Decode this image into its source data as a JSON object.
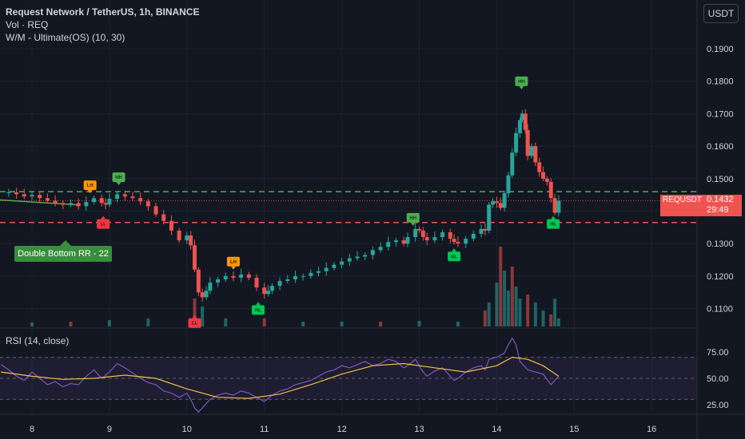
{
  "header": {
    "title": "Request Network / TetherUS, 1h, BINANCE",
    "line2": "Vol · REQ",
    "line3": "W/M - Ultimate(OS) (10, 30)"
  },
  "currency_button": "USDT",
  "rsi_label": "RSI (14, close)",
  "price_label": {
    "symbol": "REQUSDT",
    "value": "0.1432",
    "countdown": "29:49"
  },
  "callout": "Double Bottom RR - 22",
  "colors": {
    "bg": "#131722",
    "up": "#26a69a",
    "down": "#ef5350",
    "rsi_line": "#7e57c2",
    "rsi_ma": "#f0c043",
    "green_tag": "#4caf50",
    "orange_tag": "#ff9800",
    "red_tag": "#f23645",
    "teal_tag": "#00c853"
  },
  "chart_data": {
    "type": "candlestick",
    "symbol": "REQUSDT",
    "timeframe": "1h",
    "exchange": "BINANCE",
    "price_axis": {
      "ticks": [
        "0.1900",
        "0.1800",
        "0.1700",
        "0.1600",
        "0.1500",
        "0.1400",
        "0.1300",
        "0.1200",
        "0.1100"
      ],
      "range": [
        0.1085,
        0.1935
      ]
    },
    "rsi_axis": {
      "ticks": [
        "75.00",
        "50.00",
        "25.00"
      ],
      "range": [
        15,
        88
      ],
      "bands": [
        70,
        30
      ]
    },
    "x_axis": {
      "labels": [
        "8",
        "9",
        "10",
        "11",
        "12",
        "13",
        "14",
        "15",
        "16"
      ],
      "range": [
        7.6,
        16.3
      ]
    },
    "lines": {
      "resistance": 0.146,
      "support": 0.1365,
      "last": 0.1432
    },
    "trendline": [
      [
        7.55,
        0.1435
      ],
      [
        8.6,
        0.1419
      ]
    ],
    "close_series": [
      [
        7.6,
        0.1455
      ],
      [
        7.7,
        0.1458
      ],
      [
        7.8,
        0.1452
      ],
      [
        7.9,
        0.1445
      ],
      [
        8.0,
        0.145
      ],
      [
        8.1,
        0.144
      ],
      [
        8.2,
        0.1432
      ],
      [
        8.3,
        0.1425
      ],
      [
        8.4,
        0.142
      ],
      [
        8.5,
        0.1425
      ],
      [
        8.6,
        0.1415
      ],
      [
        8.7,
        0.1428
      ],
      [
        8.8,
        0.144
      ],
      [
        8.9,
        0.1425
      ],
      [
        8.95,
        0.142
      ],
      [
        9.0,
        0.1438
      ],
      [
        9.1,
        0.1452
      ],
      [
        9.2,
        0.1445
      ],
      [
        9.3,
        0.144
      ],
      [
        9.4,
        0.143
      ],
      [
        9.5,
        0.1415
      ],
      [
        9.6,
        0.139
      ],
      [
        9.7,
        0.137
      ],
      [
        9.8,
        0.134
      ],
      [
        9.9,
        0.131
      ],
      [
        10.0,
        0.1325
      ],
      [
        10.05,
        0.1295
      ],
      [
        10.1,
        0.122
      ],
      [
        10.15,
        0.115
      ],
      [
        10.2,
        0.1135
      ],
      [
        10.25,
        0.1155
      ],
      [
        10.3,
        0.118
      ],
      [
        10.4,
        0.119
      ],
      [
        10.5,
        0.12
      ],
      [
        10.6,
        0.1195
      ],
      [
        10.7,
        0.1205
      ],
      [
        10.8,
        0.1195
      ],
      [
        10.9,
        0.1165
      ],
      [
        11.0,
        0.1145
      ],
      [
        11.05,
        0.1155
      ],
      [
        11.1,
        0.117
      ],
      [
        11.2,
        0.1185
      ],
      [
        11.3,
        0.119
      ],
      [
        11.4,
        0.12
      ],
      [
        11.5,
        0.12
      ],
      [
        11.6,
        0.121
      ],
      [
        11.7,
        0.1215
      ],
      [
        11.8,
        0.1225
      ],
      [
        11.9,
        0.1235
      ],
      [
        12.0,
        0.1245
      ],
      [
        12.1,
        0.1255
      ],
      [
        12.2,
        0.126
      ],
      [
        12.3,
        0.1265
      ],
      [
        12.4,
        0.128
      ],
      [
        12.5,
        0.129
      ],
      [
        12.6,
        0.1305
      ],
      [
        12.7,
        0.131
      ],
      [
        12.8,
        0.13
      ],
      [
        12.85,
        0.132
      ],
      [
        12.95,
        0.1345
      ],
      [
        13.0,
        0.134
      ],
      [
        13.05,
        0.132
      ],
      [
        13.1,
        0.131
      ],
      [
        13.2,
        0.132
      ],
      [
        13.3,
        0.1335
      ],
      [
        13.4,
        0.1315
      ],
      [
        13.45,
        0.1305
      ],
      [
        13.5,
        0.13
      ],
      [
        13.6,
        0.1315
      ],
      [
        13.7,
        0.133
      ],
      [
        13.8,
        0.1345
      ],
      [
        13.85,
        0.134
      ],
      [
        13.9,
        0.142
      ],
      [
        13.95,
        0.143
      ],
      [
        14.0,
        0.1425
      ],
      [
        14.05,
        0.141
      ],
      [
        14.1,
        0.1455
      ],
      [
        14.15,
        0.151
      ],
      [
        14.2,
        0.158
      ],
      [
        14.25,
        0.164
      ],
      [
        14.3,
        0.168
      ],
      [
        14.33,
        0.17
      ],
      [
        14.37,
        0.165
      ],
      [
        14.4,
        0.157
      ],
      [
        14.45,
        0.16
      ],
      [
        14.5,
        0.155
      ],
      [
        14.55,
        0.152
      ],
      [
        14.6,
        0.15
      ],
      [
        14.65,
        0.149
      ],
      [
        14.7,
        0.144
      ],
      [
        14.75,
        0.1395
      ],
      [
        14.8,
        0.1432
      ]
    ],
    "volume": [
      [
        8.0,
        0.05
      ],
      [
        8.5,
        0.06
      ],
      [
        9.0,
        0.08
      ],
      [
        9.5,
        0.1
      ],
      [
        10.1,
        0.35
      ],
      [
        10.2,
        0.25
      ],
      [
        10.5,
        0.1
      ],
      [
        11.0,
        0.1
      ],
      [
        11.5,
        0.06
      ],
      [
        12.0,
        0.06
      ],
      [
        12.5,
        0.06
      ],
      [
        13.0,
        0.07
      ],
      [
        13.5,
        0.06
      ],
      [
        13.85,
        0.2
      ],
      [
        13.9,
        0.3
      ],
      [
        14.0,
        0.55
      ],
      [
        14.05,
        1.0
      ],
      [
        14.1,
        0.7
      ],
      [
        14.15,
        0.45
      ],
      [
        14.2,
        0.75
      ],
      [
        14.25,
        0.5
      ],
      [
        14.3,
        0.35
      ],
      [
        14.4,
        0.4
      ],
      [
        14.5,
        0.3
      ],
      [
        14.6,
        0.2
      ],
      [
        14.7,
        0.15
      ],
      [
        14.75,
        0.35
      ],
      [
        14.8,
        0.1
      ]
    ],
    "rsi": [
      [
        7.6,
        63
      ],
      [
        7.7,
        58
      ],
      [
        7.8,
        52
      ],
      [
        7.9,
        48
      ],
      [
        8.0,
        56
      ],
      [
        8.1,
        50
      ],
      [
        8.2,
        44
      ],
      [
        8.3,
        47
      ],
      [
        8.4,
        42
      ],
      [
        8.5,
        45
      ],
      [
        8.6,
        44
      ],
      [
        8.7,
        52
      ],
      [
        8.8,
        58
      ],
      [
        8.9,
        50
      ],
      [
        9.0,
        56
      ],
      [
        9.1,
        64
      ],
      [
        9.2,
        60
      ],
      [
        9.3,
        55
      ],
      [
        9.4,
        50
      ],
      [
        9.5,
        46
      ],
      [
        9.6,
        44
      ],
      [
        9.7,
        38
      ],
      [
        9.8,
        36
      ],
      [
        9.9,
        32
      ],
      [
        10.0,
        36
      ],
      [
        10.05,
        30
      ],
      [
        10.1,
        22
      ],
      [
        10.15,
        18
      ],
      [
        10.2,
        22
      ],
      [
        10.3,
        30
      ],
      [
        10.4,
        34
      ],
      [
        10.5,
        36
      ],
      [
        10.6,
        34
      ],
      [
        10.7,
        38
      ],
      [
        10.8,
        36
      ],
      [
        10.9,
        32
      ],
      [
        11.0,
        28
      ],
      [
        11.1,
        34
      ],
      [
        11.2,
        38
      ],
      [
        11.3,
        40
      ],
      [
        11.4,
        44
      ],
      [
        11.5,
        46
      ],
      [
        11.6,
        48
      ],
      [
        11.7,
        52
      ],
      [
        11.8,
        56
      ],
      [
        11.9,
        58
      ],
      [
        12.0,
        62
      ],
      [
        12.1,
        60
      ],
      [
        12.2,
        63
      ],
      [
        12.3,
        66
      ],
      [
        12.4,
        62
      ],
      [
        12.5,
        64
      ],
      [
        12.6,
        68
      ],
      [
        12.7,
        66
      ],
      [
        12.8,
        60
      ],
      [
        12.85,
        62
      ],
      [
        12.95,
        68
      ],
      [
        13.0,
        62
      ],
      [
        13.05,
        56
      ],
      [
        13.1,
        52
      ],
      [
        13.2,
        57
      ],
      [
        13.3,
        60
      ],
      [
        13.4,
        52
      ],
      [
        13.45,
        48
      ],
      [
        13.5,
        50
      ],
      [
        13.6,
        56
      ],
      [
        13.7,
        60
      ],
      [
        13.8,
        62
      ],
      [
        13.85,
        58
      ],
      [
        13.9,
        68
      ],
      [
        14.0,
        70
      ],
      [
        14.1,
        74
      ],
      [
        14.15,
        82
      ],
      [
        14.2,
        88
      ],
      [
        14.25,
        82
      ],
      [
        14.3,
        66
      ],
      [
        14.4,
        58
      ],
      [
        14.5,
        56
      ],
      [
        14.6,
        54
      ],
      [
        14.7,
        44
      ],
      [
        14.75,
        48
      ],
      [
        14.8,
        52
      ]
    ],
    "rsi_ma": [
      [
        7.6,
        56
      ],
      [
        8.0,
        52
      ],
      [
        8.4,
        49
      ],
      [
        8.8,
        50
      ],
      [
        9.2,
        53
      ],
      [
        9.6,
        50
      ],
      [
        10.0,
        40
      ],
      [
        10.4,
        32
      ],
      [
        10.8,
        31
      ],
      [
        11.2,
        35
      ],
      [
        11.6,
        44
      ],
      [
        12.0,
        54
      ],
      [
        12.4,
        62
      ],
      [
        12.8,
        64
      ],
      [
        13.2,
        60
      ],
      [
        13.6,
        56
      ],
      [
        14.0,
        62
      ],
      [
        14.2,
        70
      ],
      [
        14.4,
        68
      ],
      [
        14.6,
        62
      ],
      [
        14.8,
        52
      ]
    ],
    "markers": [
      {
        "label": "LH",
        "x": 8.75,
        "y": 0.145,
        "kind": "orange",
        "pos": "above"
      },
      {
        "label": "LL",
        "x": 8.92,
        "y": 0.139,
        "kind": "red",
        "pos": "below"
      },
      {
        "label": "HH",
        "x": 9.12,
        "y": 0.1475,
        "kind": "green",
        "pos": "above"
      },
      {
        "label": "LL",
        "x": 10.1,
        "y": 0.1085,
        "kind": "red",
        "pos": "below"
      },
      {
        "label": "LH",
        "x": 10.6,
        "y": 0.1215,
        "kind": "orange",
        "pos": "above"
      },
      {
        "label": "HL",
        "x": 10.92,
        "y": 0.1125,
        "kind": "teal",
        "pos": "below"
      },
      {
        "label": "HH",
        "x": 12.92,
        "y": 0.135,
        "kind": "green",
        "pos": "above"
      },
      {
        "label": "HL",
        "x": 13.45,
        "y": 0.129,
        "kind": "teal",
        "pos": "below"
      },
      {
        "label": "HH",
        "x": 14.32,
        "y": 0.177,
        "kind": "green",
        "pos": "above"
      },
      {
        "label": "HL",
        "x": 14.73,
        "y": 0.139,
        "kind": "teal",
        "pos": "below"
      }
    ]
  }
}
